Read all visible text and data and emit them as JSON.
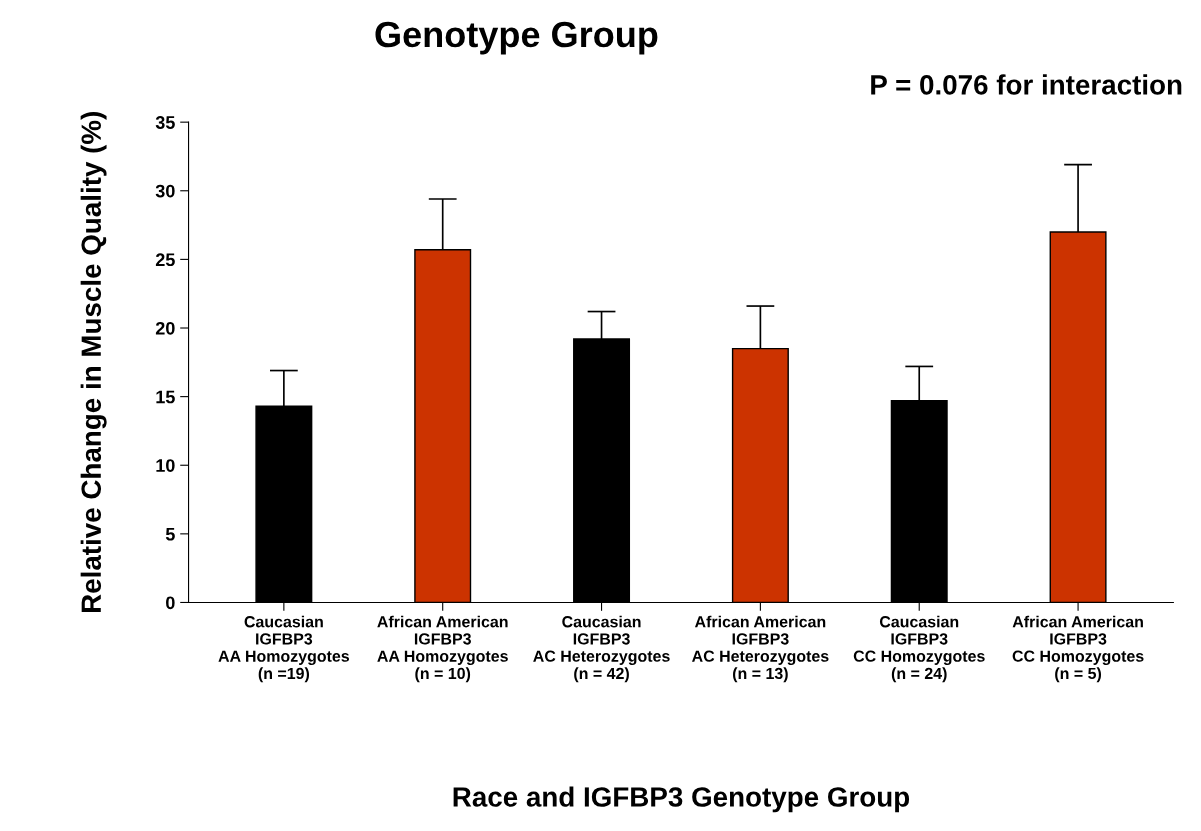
{
  "chart_data": {
    "type": "bar",
    "title": "Genotype Group",
    "categories": [
      "Caucasian\nIGFBP3\nAA Homozygotes\n(n =19)",
      "African American\nIGFBP3\nAA Homozygotes\n(n = 10)",
      "Caucasian\nIGFBP3\nAC Heterozygotes\n(n = 42)",
      "African American\nIGFBP3\nAC Heterozygotes\n(n = 13)",
      "Caucasian\nIGFBP3\nCC Homozygotes\n(n = 24)",
      "African American\nIGFBP3\nCC Homozygotes\n(n = 5)"
    ],
    "values": [
      14.3,
      25.7,
      19.2,
      18.5,
      14.7,
      27.0
    ],
    "errors": [
      2.6,
      3.7,
      2.0,
      3.1,
      2.5,
      4.9
    ],
    "colors": [
      "#000000",
      "#cc3300",
      "#000000",
      "#cc3300",
      "#000000",
      "#cc3300"
    ],
    "xlabel": "Race and IGFBP3 Genotype Group",
    "ylabel": "Relative Change in Muscle Quality (%)",
    "annotations": [
      "P = 0.076 for interaction"
    ],
    "ylim": [
      0,
      35
    ],
    "yticks": [
      0,
      5,
      10,
      15,
      20,
      25,
      30,
      35
    ],
    "grid": false,
    "legend": false
  }
}
